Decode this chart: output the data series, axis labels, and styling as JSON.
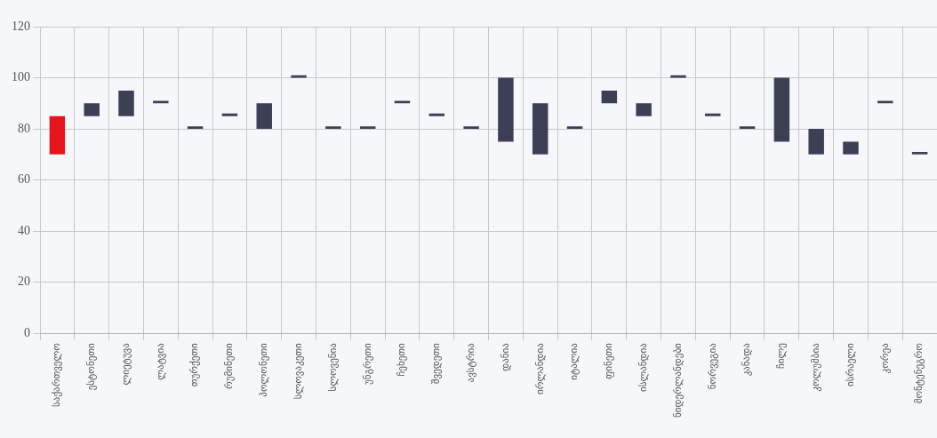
{
  "chart_data": {
    "type": "bar",
    "categories": [
      "საქართველო",
      "ესტონეთი",
      "ლიეტუვა",
      "ლატვია",
      "თურქეთი",
      "რუმინეთი",
      "პოლონეთი",
      "სლოვაკეთი",
      "სლოვენია",
      "უნგრეთი",
      "ჩეხეთი",
      "შვედეთი",
      "ავსტრია",
      "დანია",
      "ირლანდია",
      "იტალია",
      "ფინეთი",
      "ისლანდია",
      "ნიდერლანდები",
      "ნორვეგია",
      "კანადა",
      "ჩილე",
      "კოლუმბია",
      "ისრაელი",
      "კორეა",
      "მონტენეგრო"
    ],
    "base": [
      70,
      85,
      85,
      90,
      80,
      85,
      80,
      100,
      80,
      80,
      90,
      85,
      80,
      75,
      70,
      80,
      90,
      85,
      100,
      85,
      80,
      75,
      70,
      70,
      90,
      70
    ],
    "values": [
      15,
      5,
      10,
      1,
      1,
      1,
      10,
      1,
      1,
      1,
      1,
      1,
      1,
      25,
      20,
      1,
      5,
      5,
      1,
      1,
      1,
      25,
      10,
      5,
      1,
      1
    ],
    "colors": [
      "#e8141c",
      "#3d3f55",
      "#3d3f55",
      "#3d3f55",
      "#3d3f55",
      "#3d3f55",
      "#3d3f55",
      "#3d3f55",
      "#3d3f55",
      "#3d3f55",
      "#3d3f55",
      "#3d3f55",
      "#3d3f55",
      "#3d3f55",
      "#3d3f55",
      "#3d3f55",
      "#3d3f55",
      "#3d3f55",
      "#3d3f55",
      "#3d3f55",
      "#3d3f55",
      "#3d3f55",
      "#3d3f55",
      "#3d3f55",
      "#3d3f55",
      "#3d3f55"
    ],
    "ylim": [
      0,
      120
    ],
    "yticks": [
      0,
      20,
      40,
      60,
      80,
      100,
      120
    ],
    "grid": true,
    "legend": false
  }
}
